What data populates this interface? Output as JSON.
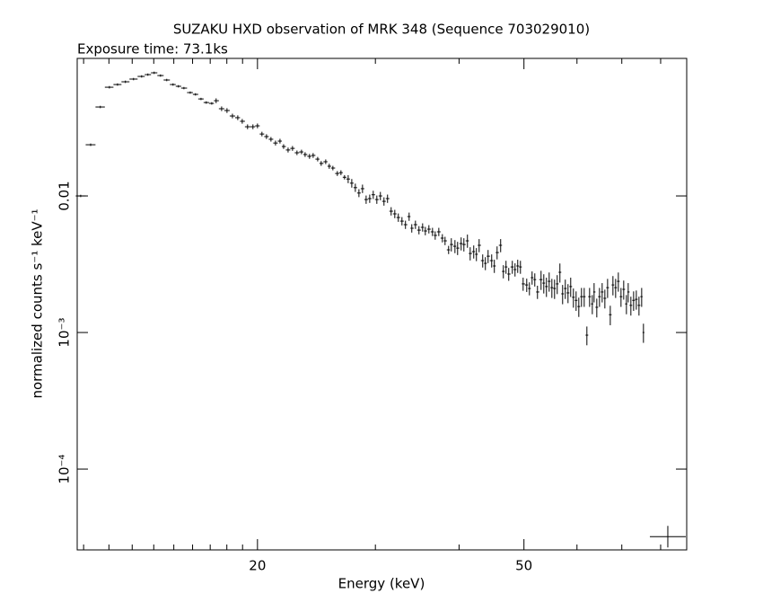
{
  "chart_data": {
    "type": "errorbar",
    "title": "SUZAKU HXD observation of MRK 348 (Sequence 703029010)",
    "subtitle": "Exposure time: 73.1ks",
    "xlabel": "Energy (keV)",
    "ylabel": "normalized counts s⁻¹ keV⁻¹",
    "xscale": "log",
    "yscale": "log",
    "xlim": [
      10.76,
      87.5
    ],
    "ylim": [
      2.56e-05,
      0.1016
    ],
    "xticks": [
      20,
      50
    ],
    "xminorticks": [
      11,
      12,
      13,
      14,
      15,
      16,
      17,
      18,
      19,
      30,
      40,
      60,
      70,
      80
    ],
    "yticks": [
      {
        "value": 0.0001,
        "label": "10⁻⁴"
      },
      {
        "value": 0.001,
        "label": "10⁻³"
      },
      0.01
    ],
    "color": "#000000",
    "x": [
      10.89,
      11.27,
      11.65,
      12.02,
      12.36,
      12.7,
      13.06,
      13.43,
      13.72,
      14.02,
      14.33,
      14.64,
      14.96,
      15.24,
      15.53,
      15.87,
      16.16,
      16.47,
      16.77,
      17.09,
      17.35,
      17.68,
      18.01,
      18.35,
      18.69,
      18.98,
      19.33,
      19.69,
      20.0,
      20.31,
      20.63,
      20.95,
      21.28,
      21.61,
      21.88,
      22.22,
      22.56,
      22.91,
      23.27,
      23.56,
      23.92,
      24.22,
      24.6,
      24.9,
      25.29,
      25.6,
      25.92,
      26.32,
      26.65,
      26.98,
      27.32,
      27.66,
      28.0,
      28.35,
      28.7,
      29.06,
      29.42,
      29.78,
      30.15,
      30.52,
      30.9,
      31.28,
      31.67,
      32.07,
      32.46,
      32.87,
      33.27,
      33.69,
      34.0,
      34.43,
      34.85,
      35.29,
      35.62,
      36.06,
      36.51,
      36.85,
      37.31,
      37.77,
      38.12,
      38.59,
      38.95,
      39.44,
      39.8,
      40.29,
      40.67,
      41.17,
      41.56,
      42.07,
      42.46,
      42.86,
      43.39,
      43.79,
      44.2,
      44.75,
      45.16,
      45.59,
      46.15,
      46.58,
      47.01,
      47.45,
      48.04,
      48.49,
      48.94,
      49.4,
      49.86,
      50.48,
      50.95,
      51.42,
      51.9,
      52.38,
      53.03,
      53.53,
      54.02,
      54.53,
      55.04,
      55.55,
      56.06,
      56.58,
      57.11,
      57.64,
      58.18,
      58.72,
      59.27,
      59.82,
      60.38,
      60.94,
      61.51,
      62.08,
      62.66,
      63.25,
      63.64,
      64.23,
      64.83,
      65.43,
      66.04,
      66.66,
      67.28,
      67.9,
      68.53,
      69.17,
      69.81,
      70.46,
      71.12,
      71.56,
      72.22,
      72.9,
      73.58,
      74.26,
      74.95,
      75.41
    ],
    "values": [
      0.01,
      0.0237,
      0.0448,
      0.0625,
      0.0654,
      0.0685,
      0.0717,
      0.075,
      0.0773,
      0.0797,
      0.0761,
      0.0706,
      0.0654,
      0.0635,
      0.0616,
      0.0571,
      0.0554,
      0.0513,
      0.0483,
      0.0476,
      0.0498,
      0.0435,
      0.0422,
      0.0385,
      0.0374,
      0.0352,
      0.0321,
      0.0321,
      0.0326,
      0.0284,
      0.0272,
      0.026,
      0.0244,
      0.0252,
      0.023,
      0.0217,
      0.0223,
      0.0207,
      0.021,
      0.0201,
      0.0195,
      0.0198,
      0.0186,
      0.0173,
      0.0178,
      0.0165,
      0.016,
      0.0146,
      0.0148,
      0.0137,
      0.0133,
      0.0124,
      0.0115,
      0.0105,
      0.0113,
      0.00941,
      0.00956,
      0.0102,
      0.00941,
      0.01,
      0.00913,
      0.00956,
      0.00773,
      0.00739,
      0.00695,
      0.00654,
      0.00616,
      0.00706,
      0.0058,
      0.00616,
      0.00562,
      0.00589,
      0.00554,
      0.00571,
      0.00546,
      0.00514,
      0.00546,
      0.00491,
      0.00469,
      0.00403,
      0.00441,
      0.00428,
      0.00415,
      0.00448,
      0.00441,
      0.00469,
      0.00379,
      0.00391,
      0.00374,
      0.00435,
      0.00336,
      0.00321,
      0.00362,
      0.00336,
      0.00307,
      0.00385,
      0.00435,
      0.0028,
      0.00302,
      0.00268,
      0.00302,
      0.00289,
      0.00307,
      0.00302,
      0.00227,
      0.00223,
      0.0021,
      0.00252,
      0.00244,
      0.00198,
      0.00244,
      0.0023,
      0.00217,
      0.00237,
      0.00213,
      0.0021,
      0.00227,
      0.00276,
      0.00192,
      0.0021,
      0.00195,
      0.00217,
      0.00181,
      0.00172,
      0.00155,
      0.00183,
      0.00183,
      0.000956,
      0.00183,
      0.00162,
      0.00198,
      0.00153,
      0.00183,
      0.00198,
      0.00178,
      0.00213,
      0.00135,
      0.00223,
      0.00213,
      0.00237,
      0.00183,
      0.00207,
      0.00162,
      0.00198,
      0.00158,
      0.00172,
      0.00175,
      0.00158,
      0.00183,
      0.001
    ],
    "yerr": [
      0.0002,
      0.0005,
      0.0009,
      0.0013,
      0.0013,
      0.0014,
      0.0014,
      0.0015,
      0.0015,
      0.0016,
      0.0015,
      0.0014,
      0.0013,
      0.0013,
      0.0012,
      0.0011,
      0.0011,
      0.001,
      0.001,
      0.001,
      0.002,
      0.0017,
      0.0017,
      0.0015,
      0.0015,
      0.0014,
      0.0013,
      0.0013,
      0.0013,
      0.0011,
      0.0011,
      0.001,
      0.001,
      0.001,
      0.0009,
      0.0009,
      0.0009,
      0.0008,
      0.0008,
      0.0008,
      0.0008,
      0.0008,
      0.0007,
      0.0007,
      0.0007,
      0.0007,
      0.0006,
      0.0006,
      0.0006,
      0.0005,
      0.0009,
      0.0009,
      0.0008,
      0.0007,
      0.0008,
      0.00066,
      0.00067,
      0.00071,
      0.00066,
      0.0007,
      0.00064,
      0.00067,
      0.00054,
      0.00052,
      0.00049,
      0.00046,
      0.00043,
      0.00049,
      0.00041,
      0.00043,
      0.00039,
      0.00041,
      0.00039,
      0.0004,
      0.00038,
      0.00036,
      0.00038,
      0.00034,
      0.00033,
      0.00028,
      0.00049,
      0.00047,
      0.00046,
      0.00049,
      0.00049,
      0.00052,
      0.00042,
      0.00043,
      0.00041,
      0.00048,
      0.00037,
      0.00035,
      0.0004,
      0.00037,
      0.00034,
      0.00042,
      0.00048,
      0.00031,
      0.00033,
      0.00029,
      0.00033,
      0.00032,
      0.00034,
      0.00033,
      0.00025,
      0.00025,
      0.00023,
      0.00028,
      0.00027,
      0.00022,
      0.00039,
      0.00037,
      0.00035,
      0.00038,
      0.00034,
      0.00034,
      0.00036,
      0.00044,
      0.00031,
      0.00034,
      0.00031,
      0.00035,
      0.00029,
      0.00028,
      0.00025,
      0.00029,
      0.00029,
      0.00015,
      0.00029,
      0.00026,
      0.00032,
      0.00024,
      0.00029,
      0.00032,
      0.00028,
      0.00034,
      0.00022,
      0.00036,
      0.00034,
      0.00038,
      0.00029,
      0.00033,
      0.00026,
      0.00032,
      0.00025,
      0.00028,
      0.00028,
      0.00025,
      0.00029,
      0.00016
    ],
    "marker": {
      "x": 82,
      "y": 3.2e-05
    }
  }
}
